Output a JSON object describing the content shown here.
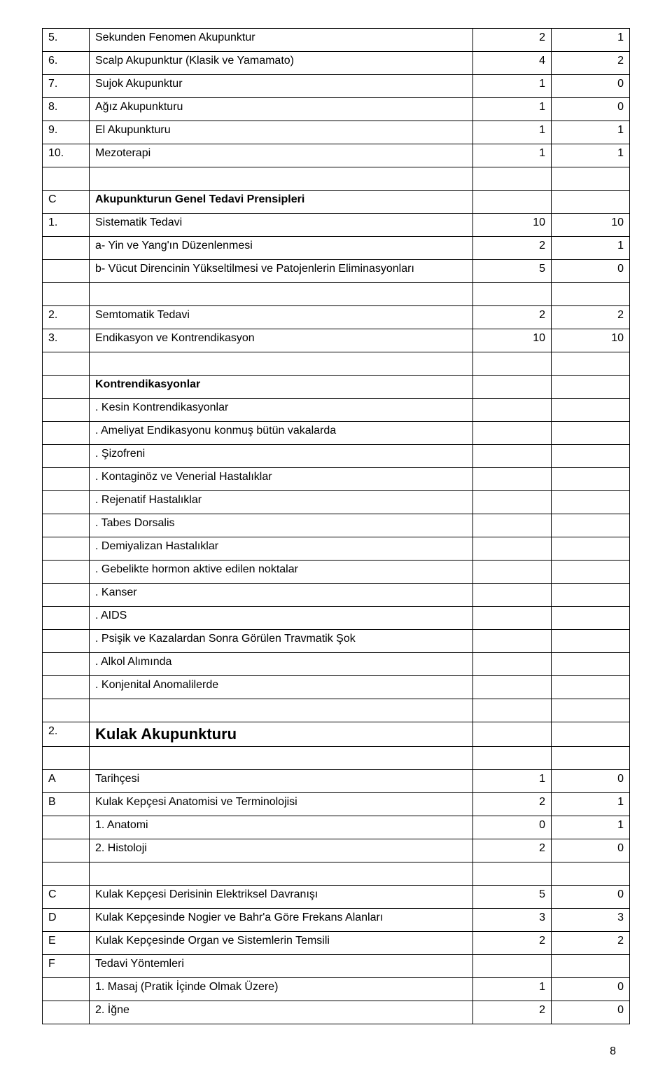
{
  "rows": [
    {
      "c0": "5.",
      "c1": "Sekunden Fenomen Akupunktur",
      "c2": "2",
      "c3": "1"
    },
    {
      "c0": "6.",
      "c1": "Scalp Akupunktur (Klasik ve Yamamato)",
      "c2": "4",
      "c3": "2"
    },
    {
      "c0": "7.",
      "c1": "Sujok Akupunktur",
      "c2": "1",
      "c3": "0"
    },
    {
      "c0": "8.",
      "c1": "Ağız Akupunkturu",
      "c2": "1",
      "c3": "0"
    },
    {
      "c0": "9.",
      "c1": "El Akupunkturu",
      "c2": "1",
      "c3": "1"
    },
    {
      "c0": "10.",
      "c1": "Mezoterapi",
      "c2": "1",
      "c3": "1"
    },
    {
      "c0": "",
      "c1": "",
      "c2": "",
      "c3": ""
    },
    {
      "c0": "C",
      "c1": "Akupunkturun Genel Tedavi Prensipleri",
      "c2": "",
      "c3": "",
      "bold1": true
    },
    {
      "c0": "1.",
      "c1": "Sistematik Tedavi",
      "c2": "10",
      "c3": "10"
    },
    {
      "c0": "",
      "c1": "a- Yin ve Yang'ın Düzenlenmesi",
      "c2": "2",
      "c3": "1"
    },
    {
      "c0": "",
      "c1": "b- Vücut Direncinin Yükseltilmesi ve Patojenlerin Eliminasyonları",
      "c2": "5",
      "c3": "0"
    },
    {
      "c0": "",
      "c1": "",
      "c2": "",
      "c3": ""
    },
    {
      "c0": "2.",
      "c1": "Semtomatik Tedavi",
      "c2": "2",
      "c3": "2"
    },
    {
      "c0": "3.",
      "c1": "Endikasyon ve Kontrendikasyon",
      "c2": "10",
      "c3": "10"
    },
    {
      "c0": "",
      "c1": "",
      "c2": "",
      "c3": ""
    },
    {
      "c0": "",
      "c1": "Kontrendikasyonlar",
      "c2": "",
      "c3": "",
      "bold1": true
    },
    {
      "c0": "",
      "c1": ". Kesin Kontrendikasyonlar",
      "c2": "",
      "c3": ""
    },
    {
      "c0": "",
      "c1": ". Ameliyat Endikasyonu konmuş bütün vakalarda",
      "c2": "",
      "c3": ""
    },
    {
      "c0": "",
      "c1": ". Şizofreni",
      "c2": "",
      "c3": ""
    },
    {
      "c0": "",
      "c1": ". Kontaginöz ve Venerial Hastalıklar",
      "c2": "",
      "c3": ""
    },
    {
      "c0": "",
      "c1": ". Rejenatif Hastalıklar",
      "c2": "",
      "c3": ""
    },
    {
      "c0": "",
      "c1": ". Tabes Dorsalis",
      "c2": "",
      "c3": ""
    },
    {
      "c0": "",
      "c1": ". Demiyalizan Hastalıklar",
      "c2": "",
      "c3": ""
    },
    {
      "c0": "",
      "c1": ". Gebelikte hormon aktive edilen noktalar",
      "c2": "",
      "c3": ""
    },
    {
      "c0": "",
      "c1": ". Kanser",
      "c2": "",
      "c3": ""
    },
    {
      "c0": "",
      "c1": ". AIDS",
      "c2": "",
      "c3": ""
    },
    {
      "c0": "",
      "c1": ". Psişik ve Kazalardan Sonra Görülen Travmatik Şok",
      "c2": "",
      "c3": ""
    },
    {
      "c0": "",
      "c1": ". Alkol Alımında",
      "c2": "",
      "c3": ""
    },
    {
      "c0": "",
      "c1": ". Konjenital Anomalilerde",
      "c2": "",
      "c3": ""
    },
    {
      "c0": "",
      "c1": "",
      "c2": "",
      "c3": ""
    },
    {
      "c0": "2.",
      "c1": "Kulak Akupunkturu",
      "c2": "",
      "c3": "",
      "big": true
    },
    {
      "c0": "",
      "c1": "",
      "c2": "",
      "c3": ""
    },
    {
      "c0": "A",
      "c1": "Tarihçesi",
      "c2": "1",
      "c3": "0"
    },
    {
      "c0": "B",
      "c1": "Kulak Kepçesi Anatomisi ve Terminolojisi",
      "c2": "2",
      "c3": "1"
    },
    {
      "c0": "",
      "c1": "1. Anatomi",
      "c2": "0",
      "c3": "1"
    },
    {
      "c0": "",
      "c1": "2. Histoloji",
      "c2": "2",
      "c3": "0"
    },
    {
      "c0": "",
      "c1": "",
      "c2": "",
      "c3": ""
    },
    {
      "c0": "C",
      "c1": "Kulak Kepçesi Derisinin Elektriksel Davranışı",
      "c2": "5",
      "c3": "0"
    },
    {
      "c0": "D",
      "c1": "Kulak Kepçesinde Nogier ve Bahr'a Göre Frekans Alanları",
      "c2": "3",
      "c3": "3"
    },
    {
      "c0": "E",
      "c1": "Kulak Kepçesinde Organ ve Sistemlerin Temsili",
      "c2": "2",
      "c3": "2"
    },
    {
      "c0": "F",
      "c1": "Tedavi Yöntemleri",
      "c2": "",
      "c3": ""
    },
    {
      "c0": "",
      "c1": "1. Masaj (Pratik İçinde Olmak Üzere)",
      "c2": "1",
      "c3": "0"
    },
    {
      "c0": "",
      "c1": "2. İğne",
      "c2": "2",
      "c3": "0"
    }
  ],
  "pageNumber": "8"
}
